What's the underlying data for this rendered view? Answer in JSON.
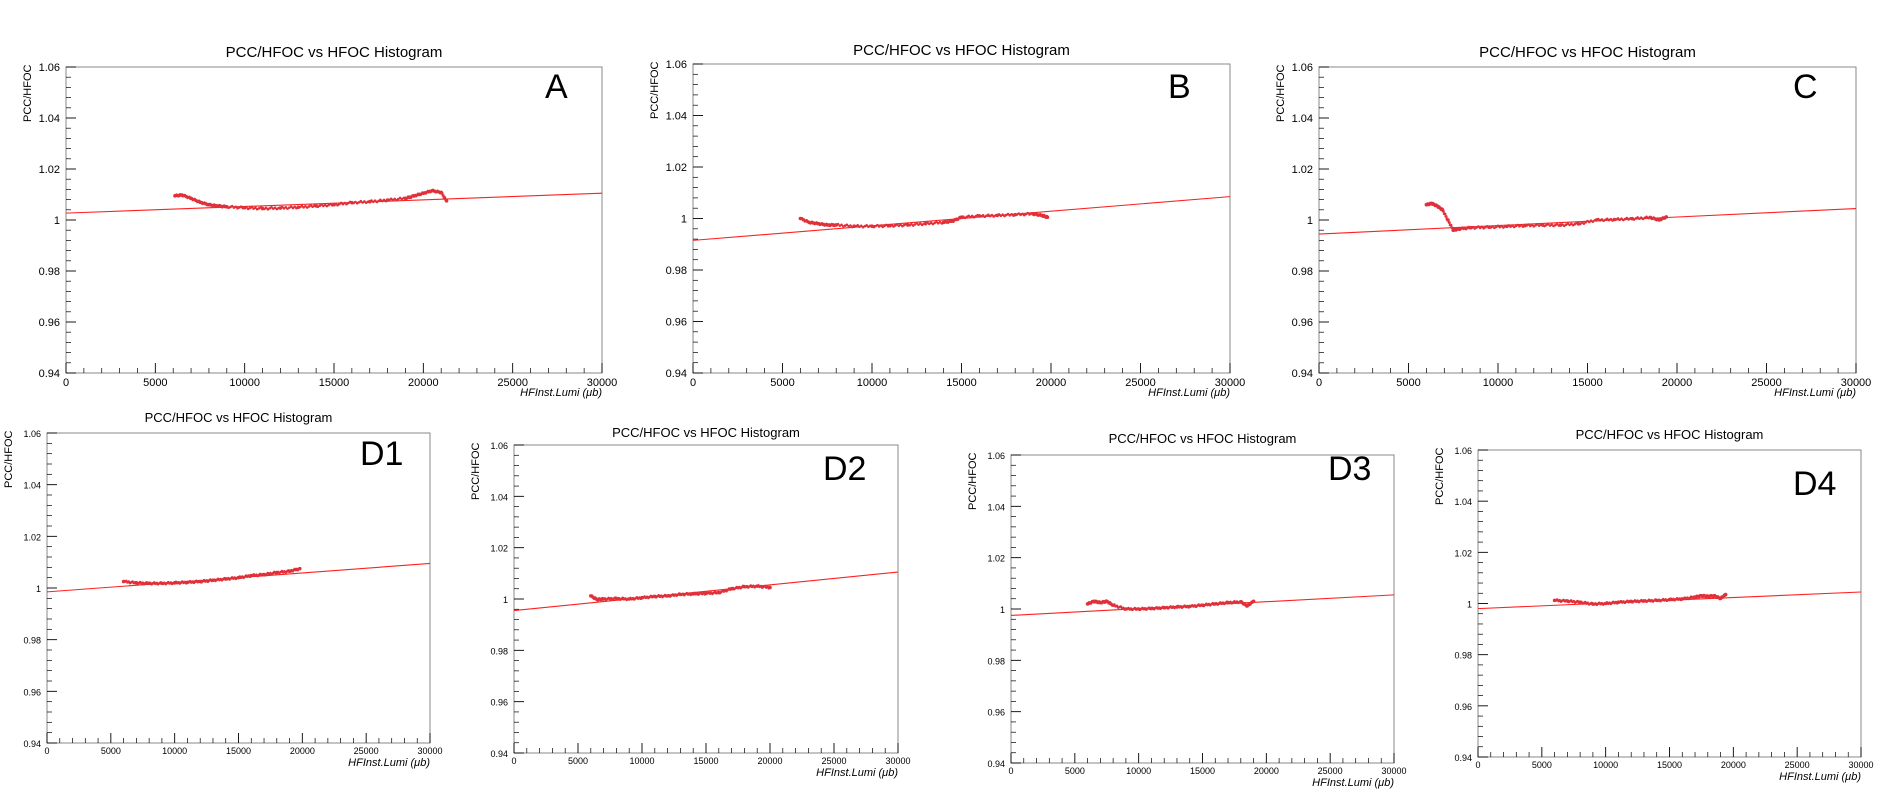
{
  "chart_data": [
    {
      "id": "A",
      "type": "scatter",
      "title": "PCC/HFOC vs HFOC Histogram",
      "panel_label": "A",
      "xlabel": "HFInst.Lumi   (μb)",
      "ylabel": "PCC/HFOC",
      "xlim": [
        0,
        30000
      ],
      "ylim": [
        0.94,
        1.06
      ],
      "xticks": [
        0,
        5000,
        10000,
        15000,
        20000,
        25000,
        30000
      ],
      "xtick_labels": [
        "0",
        "5000",
        "10000",
        "15000",
        "20000",
        "25000",
        "30000"
      ],
      "yticks": [
        0.94,
        0.96,
        0.98,
        1.0,
        1.02,
        1.04,
        1.06
      ],
      "ytick_labels": [
        "0.94",
        "0.96",
        "0.98",
        "1",
        "1.02",
        "1.04",
        "1.06"
      ],
      "fit_line": {
        "x": [
          0,
          30000
        ],
        "y": [
          1.0027,
          1.0105
        ]
      },
      "series": [
        {
          "x": [
            6100,
            6500,
            7000,
            7500,
            8000,
            8500,
            9000,
            10000,
            11000,
            12000,
            13000,
            14000,
            15000,
            16000,
            17000,
            18000,
            19000,
            19500,
            20000,
            20500,
            21000,
            21300
          ],
          "y": [
            1.0095,
            1.0098,
            1.0085,
            1.007,
            1.006,
            1.0055,
            1.0052,
            1.0048,
            1.0045,
            1.0047,
            1.005,
            1.0055,
            1.006,
            1.0068,
            1.0072,
            1.0078,
            1.0085,
            1.0095,
            1.0105,
            1.0115,
            1.0108,
            1.0075
          ]
        }
      ]
    },
    {
      "id": "B",
      "type": "scatter",
      "title": "PCC/HFOC vs HFOC Histogram",
      "panel_label": "B",
      "xlabel": "HFInst.Lumi   (μb)",
      "ylabel": "PCC/HFOC",
      "xlim": [
        0,
        30000
      ],
      "ylim": [
        0.94,
        1.06
      ],
      "xticks": [
        0,
        5000,
        10000,
        15000,
        20000,
        25000,
        30000
      ],
      "xtick_labels": [
        "0",
        "5000",
        "10000",
        "15000",
        "20000",
        "25000",
        "30000"
      ],
      "yticks": [
        0.94,
        0.96,
        0.98,
        1.0,
        1.02,
        1.04,
        1.06
      ],
      "ytick_labels": [
        "0.94",
        "0.96",
        "0.98",
        "1",
        "1.02",
        "1.04",
        "1.06"
      ],
      "fit_line": {
        "x": [
          0,
          30000
        ],
        "y": [
          0.9915,
          1.0085
        ]
      },
      "series": [
        {
          "x": [
            6000,
            6500,
            7000,
            7500,
            8000,
            9000,
            10000,
            11000,
            12000,
            13000,
            14000,
            14500,
            15000,
            16000,
            17000,
            18000,
            19000,
            19500,
            19800
          ],
          "y": [
            1.0,
            0.9985,
            0.998,
            0.9975,
            0.9975,
            0.997,
            0.997,
            0.9972,
            0.9975,
            0.998,
            0.9985,
            0.999,
            1.0005,
            1.001,
            1.0012,
            1.0015,
            1.0018,
            1.0012,
            1.0005
          ]
        }
      ]
    },
    {
      "id": "C",
      "type": "scatter",
      "title": "PCC/HFOC vs HFOC Histogram",
      "panel_label": "C",
      "xlabel": "HFInst.Lumi   (μb)",
      "ylabel": "PCC/HFOC",
      "xlim": [
        0,
        30000
      ],
      "ylim": [
        0.94,
        1.06
      ],
      "xticks": [
        0,
        5000,
        10000,
        15000,
        20000,
        25000,
        30000
      ],
      "xtick_labels": [
        "0",
        "5000",
        "10000",
        "15000",
        "20000",
        "25000",
        "30000"
      ],
      "yticks": [
        0.94,
        0.96,
        0.98,
        1.0,
        1.02,
        1.04,
        1.06
      ],
      "ytick_labels": [
        "0.94",
        "0.96",
        "0.98",
        "1",
        "1.02",
        "1.04",
        "1.06"
      ],
      "fit_line": {
        "x": [
          0,
          30000
        ],
        "y": [
          0.9945,
          1.0045
        ]
      },
      "series": [
        {
          "x": [
            6000,
            6300,
            6600,
            6900,
            7200,
            7500,
            7800,
            8500,
            9500,
            10500,
            11500,
            12500,
            13500,
            14500,
            15500,
            16500,
            17500,
            18500,
            19000,
            19400
          ],
          "y": [
            1.006,
            1.0065,
            1.0055,
            1.004,
            1.0,
            0.996,
            0.9965,
            0.997,
            0.9972,
            0.9975,
            0.9978,
            0.998,
            0.998,
            0.9985,
            1.0,
            1.0002,
            1.0005,
            1.001,
            1.0,
            1.0012
          ]
        }
      ]
    },
    {
      "id": "D1",
      "type": "scatter",
      "title": "PCC/HFOC vs HFOC Histogram",
      "panel_label": "D1",
      "xlabel": "HFInst.Lumi   (μb)",
      "ylabel": "PCC/HFOC",
      "xlim": [
        0,
        30000
      ],
      "ylim": [
        0.94,
        1.06
      ],
      "xticks": [
        0,
        5000,
        10000,
        15000,
        20000,
        25000,
        30000
      ],
      "xtick_labels": [
        "0",
        "5000",
        "10000",
        "15000",
        "20000",
        "25000",
        "30000"
      ],
      "yticks": [
        0.94,
        0.96,
        0.98,
        1.0,
        1.02,
        1.04,
        1.06
      ],
      "ytick_labels": [
        "0.94",
        "0.96",
        "0.98",
        "1",
        "1.02",
        "1.04",
        "1.06"
      ],
      "fit_line": {
        "x": [
          0,
          30000
        ],
        "y": [
          0.9985,
          1.0095
        ]
      },
      "series": [
        {
          "x": [
            6000,
            7000,
            8000,
            9000,
            10000,
            11000,
            12000,
            13000,
            14000,
            15000,
            16000,
            17000,
            18000,
            19000,
            19800
          ],
          "y": [
            1.0025,
            1.002,
            1.0018,
            1.0018,
            1.002,
            1.0022,
            1.0025,
            1.003,
            1.0035,
            1.004,
            1.0048,
            1.0052,
            1.006,
            1.0065,
            1.0075
          ]
        }
      ]
    },
    {
      "id": "D2",
      "type": "scatter",
      "title": "PCC/HFOC vs HFOC Histogram",
      "panel_label": "D2",
      "xlabel": "HFInst.Lumi   (μb)",
      "ylabel": "PCC/HFOC",
      "xlim": [
        0,
        30000
      ],
      "ylim": [
        0.94,
        1.06
      ],
      "xticks": [
        0,
        5000,
        10000,
        15000,
        20000,
        25000,
        30000
      ],
      "xtick_labels": [
        "0",
        "5000",
        "10000",
        "15000",
        "20000",
        "25000",
        "30000"
      ],
      "yticks": [
        0.94,
        0.96,
        0.98,
        1.0,
        1.02,
        1.04,
        1.06
      ],
      "ytick_labels": [
        "0.94",
        "0.96",
        "0.98",
        "1",
        "1.02",
        "1.04",
        "1.06"
      ],
      "fit_line": {
        "x": [
          0,
          30000
        ],
        "y": [
          0.9955,
          1.0105
        ]
      },
      "series": [
        {
          "x": [
            6000,
            6500,
            7000,
            8000,
            9000,
            10000,
            11000,
            12000,
            13000,
            14000,
            15000,
            16000,
            17000,
            18000,
            19000,
            20000
          ],
          "y": [
            1.0012,
            0.9998,
            1.0,
            1.0002,
            1.0,
            1.0005,
            1.001,
            1.0012,
            1.0018,
            1.002,
            1.0022,
            1.0025,
            1.004,
            1.0048,
            1.005,
            1.0045
          ]
        }
      ]
    },
    {
      "id": "D3",
      "type": "scatter",
      "title": "PCC/HFOC vs HFOC Histogram",
      "panel_label": "D3",
      "xlabel": "HFInst.Lumi   (μb)",
      "ylabel": "PCC/HFOC",
      "xlim": [
        0,
        30000
      ],
      "ylim": [
        0.94,
        1.06
      ],
      "xticks": [
        0,
        5000,
        10000,
        15000,
        20000,
        25000,
        30000
      ],
      "xtick_labels": [
        "0",
        "5000",
        "10000",
        "15000",
        "20000",
        "25000",
        "30000"
      ],
      "yticks": [
        0.94,
        0.96,
        0.98,
        1.0,
        1.02,
        1.04,
        1.06
      ],
      "ytick_labels": [
        "0.94",
        "0.96",
        "0.98",
        "1",
        "1.02",
        "1.04",
        "1.06"
      ],
      "fit_line": {
        "x": [
          0,
          30000
        ],
        "y": [
          0.9975,
          1.0055
        ]
      },
      "series": [
        {
          "x": [
            6000,
            6500,
            7000,
            7500,
            8000,
            9000,
            10000,
            11000,
            12000,
            13000,
            14000,
            15000,
            16000,
            17000,
            18000,
            18500,
            19000
          ],
          "y": [
            1.002,
            1.003,
            1.0025,
            1.003,
            1.0015,
            1.0,
            1.0,
            1.0002,
            1.0005,
            1.0008,
            1.001,
            1.0015,
            1.002,
            1.0025,
            1.0028,
            1.0012,
            1.003
          ]
        }
      ]
    },
    {
      "id": "D4",
      "type": "scatter",
      "title": "PCC/HFOC vs HFOC Histogram",
      "panel_label": "D4",
      "xlabel": "HFInst.Lumi   (μb)",
      "ylabel": "PCC/HFOC",
      "xlim": [
        0,
        30000
      ],
      "ylim": [
        0.94,
        1.06
      ],
      "xticks": [
        0,
        5000,
        10000,
        15000,
        20000,
        25000,
        30000
      ],
      "xtick_labels": [
        "0",
        "5000",
        "10000",
        "15000",
        "20000",
        "25000",
        "30000"
      ],
      "yticks": [
        0.94,
        0.96,
        0.98,
        1.0,
        1.02,
        1.04,
        1.06
      ],
      "ytick_labels": [
        "0.94",
        "0.96",
        "0.98",
        "1",
        "1.02",
        "1.04",
        "1.06"
      ],
      "fit_line": {
        "x": [
          0,
          30000
        ],
        "y": [
          0.998,
          1.0045
        ]
      },
      "series": [
        {
          "x": [
            6000,
            7000,
            8000,
            9000,
            10000,
            11000,
            12000,
            13000,
            14000,
            15000,
            16000,
            17000,
            17500,
            18000,
            18500,
            19000,
            19400
          ],
          "y": [
            1.0012,
            1.001,
            1.0005,
            0.9998,
            1.0,
            1.0005,
            1.0008,
            1.001,
            1.0012,
            1.0015,
            1.0018,
            1.0025,
            1.003,
            1.0028,
            1.003,
            1.002,
            1.0035
          ]
        }
      ]
    }
  ],
  "colors": {
    "data": "#e0303a",
    "fit": "#ff2020",
    "axis": "#000000"
  }
}
